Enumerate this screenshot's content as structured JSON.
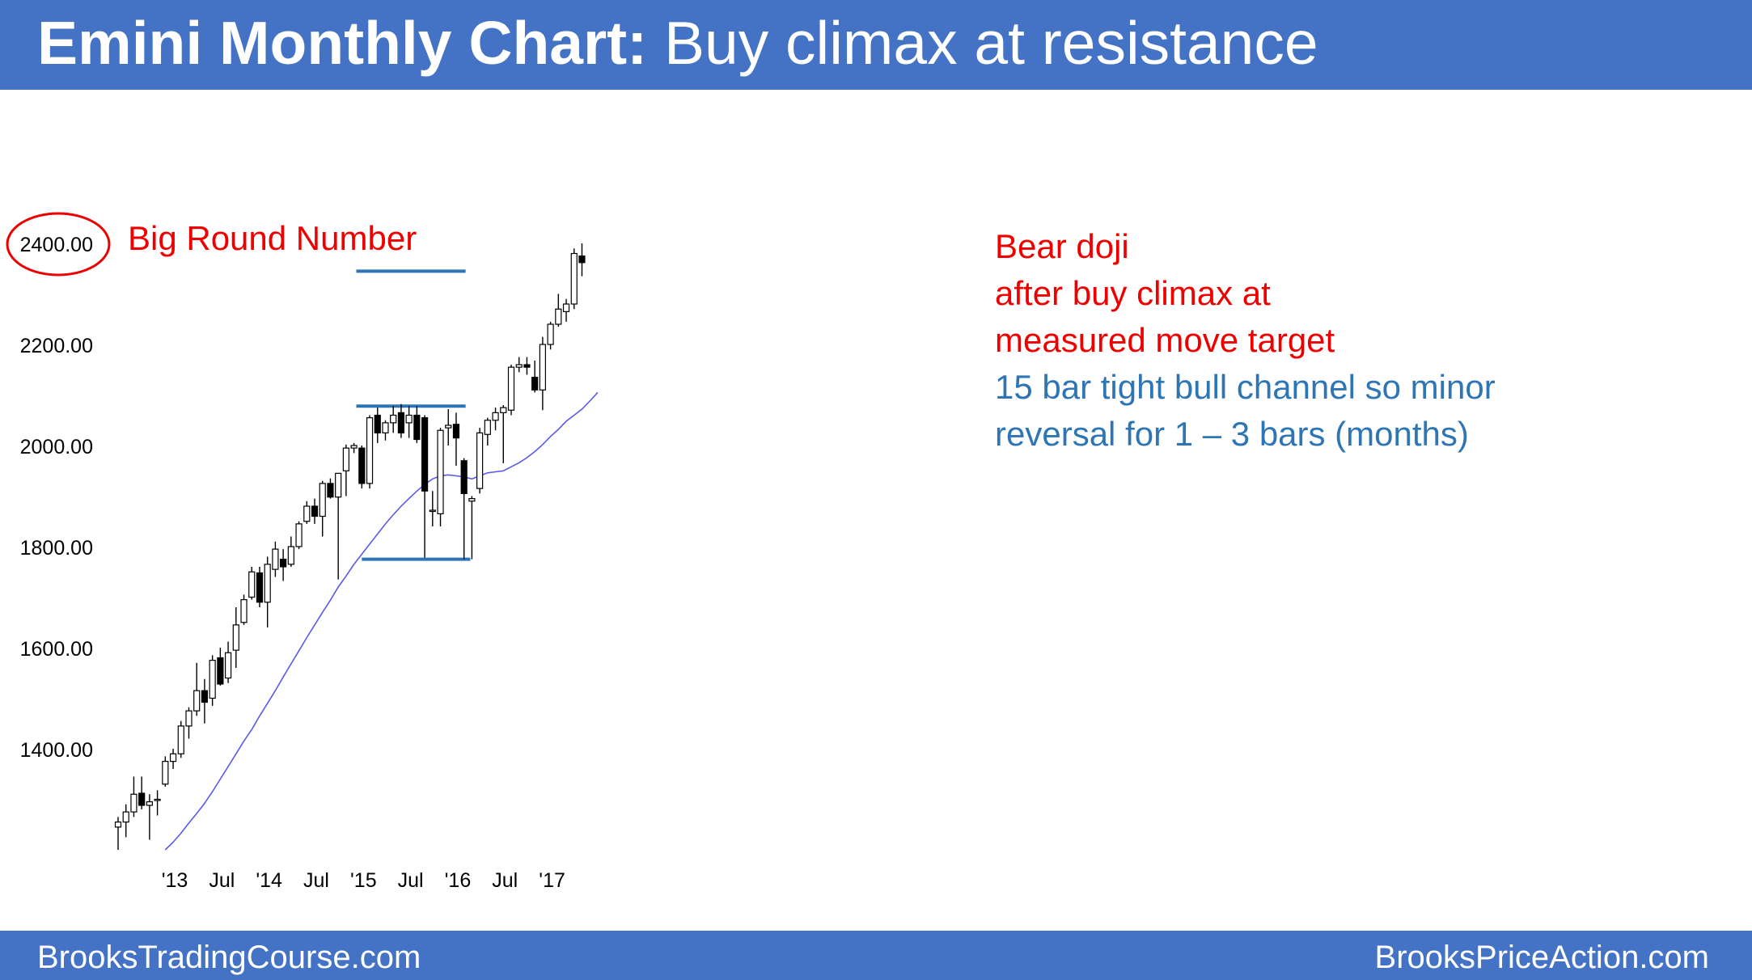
{
  "header": {
    "title_bold": "Emini Monthly Chart:",
    "title_rest": " Buy climax at resistance"
  },
  "footer": {
    "left": "BrooksTradingCourse.com",
    "right": "BrooksPriceAction.com"
  },
  "annotations": {
    "big_round_number": "Big Round Number",
    "red_lines": [
      "Bear doji",
      "after buy climax at",
      "measured move target"
    ],
    "blue_lines": [
      "15 bar tight bull channel so minor",
      "reversal for 1 – 3 bars (months)"
    ]
  },
  "colors": {
    "brand": "#4472C4",
    "red": "#EE0000",
    "blue_line": "#2E75B6",
    "ema": "#5A5AE6",
    "bear_candle": "#000000",
    "bull_candle": "#ffffff"
  },
  "chart_data": {
    "type": "candlestick",
    "title": "",
    "ylim": [
      1180,
      2460
    ],
    "ylabel": "",
    "xlabel": "",
    "y_ticks": [
      {
        "value": 1400,
        "label": "1400.00"
      },
      {
        "value": 1600,
        "label": "1600.00"
      },
      {
        "value": 1800,
        "label": "1800.00"
      },
      {
        "value": 2000,
        "label": "2000.00"
      },
      {
        "value": 2200,
        "label": "2200.00"
      },
      {
        "value": 2400,
        "label": "2400.00",
        "circled": true
      }
    ],
    "x_ticks": [
      {
        "index": 7,
        "label": "'13"
      },
      {
        "index": 13,
        "label": "Jul"
      },
      {
        "index": 19,
        "label": "'14"
      },
      {
        "index": 25,
        "label": "Jul"
      },
      {
        "index": 31,
        "label": "'15"
      },
      {
        "index": 37,
        "label": "Jul"
      },
      {
        "index": 43,
        "label": "'16"
      },
      {
        "index": 49,
        "label": "Jul"
      },
      {
        "index": 55,
        "label": "'17"
      }
    ],
    "candles": [
      {
        "o": 1245,
        "h": 1265,
        "l": 1200,
        "c": 1255
      },
      {
        "o": 1255,
        "h": 1290,
        "l": 1225,
        "c": 1275
      },
      {
        "o": 1275,
        "h": 1345,
        "l": 1265,
        "c": 1310
      },
      {
        "o": 1312,
        "h": 1345,
        "l": 1280,
        "c": 1288
      },
      {
        "o": 1288,
        "h": 1310,
        "l": 1220,
        "c": 1295
      },
      {
        "o": 1298,
        "h": 1318,
        "l": 1268,
        "c": 1300
      },
      {
        "o": 1330,
        "h": 1385,
        "l": 1325,
        "c": 1375
      },
      {
        "o": 1375,
        "h": 1400,
        "l": 1360,
        "c": 1390
      },
      {
        "o": 1390,
        "h": 1455,
        "l": 1382,
        "c": 1445
      },
      {
        "o": 1445,
        "h": 1482,
        "l": 1420,
        "c": 1475
      },
      {
        "o": 1475,
        "h": 1570,
        "l": 1465,
        "c": 1515
      },
      {
        "o": 1515,
        "h": 1538,
        "l": 1450,
        "c": 1492
      },
      {
        "o": 1500,
        "h": 1585,
        "l": 1485,
        "c": 1575
      },
      {
        "o": 1580,
        "h": 1600,
        "l": 1525,
        "c": 1528
      },
      {
        "o": 1540,
        "h": 1612,
        "l": 1530,
        "c": 1590
      },
      {
        "o": 1595,
        "h": 1680,
        "l": 1560,
        "c": 1645
      },
      {
        "o": 1650,
        "h": 1705,
        "l": 1645,
        "c": 1695
      },
      {
        "o": 1700,
        "h": 1760,
        "l": 1695,
        "c": 1750
      },
      {
        "o": 1748,
        "h": 1760,
        "l": 1680,
        "c": 1690
      },
      {
        "o": 1690,
        "h": 1780,
        "l": 1640,
        "c": 1765
      },
      {
        "o": 1755,
        "h": 1810,
        "l": 1740,
        "c": 1795
      },
      {
        "o": 1775,
        "h": 1795,
        "l": 1732,
        "c": 1760
      },
      {
        "o": 1765,
        "h": 1820,
        "l": 1760,
        "c": 1800
      },
      {
        "o": 1800,
        "h": 1850,
        "l": 1795,
        "c": 1845
      },
      {
        "o": 1850,
        "h": 1890,
        "l": 1845,
        "c": 1880
      },
      {
        "o": 1880,
        "h": 1895,
        "l": 1845,
        "c": 1860
      },
      {
        "o": 1860,
        "h": 1930,
        "l": 1820,
        "c": 1925
      },
      {
        "o": 1925,
        "h": 1935,
        "l": 1895,
        "c": 1898
      },
      {
        "o": 1898,
        "h": 1945,
        "l": 1735,
        "c": 1945
      },
      {
        "o": 1950,
        "h": 2002,
        "l": 1900,
        "c": 1995
      },
      {
        "o": 1995,
        "h": 2005,
        "l": 1985,
        "c": 2000
      },
      {
        "o": 1995,
        "h": 2000,
        "l": 1915,
        "c": 1925
      },
      {
        "o": 1925,
        "h": 2060,
        "l": 1915,
        "c": 2055
      },
      {
        "o": 2060,
        "h": 2075,
        "l": 2005,
        "c": 2025
      },
      {
        "o": 2025,
        "h": 2050,
        "l": 2010,
        "c": 2045
      },
      {
        "o": 2045,
        "h": 2078,
        "l": 2025,
        "c": 2060
      },
      {
        "o": 2065,
        "h": 2082,
        "l": 2015,
        "c": 2025
      },
      {
        "o": 2045,
        "h": 2078,
        "l": 2015,
        "c": 2060
      },
      {
        "o": 2060,
        "h": 2078,
        "l": 2005,
        "c": 2012
      },
      {
        "o": 2055,
        "h": 2060,
        "l": 1778,
        "c": 1910
      },
      {
        "o": 1870,
        "h": 1910,
        "l": 1840,
        "c": 1872
      },
      {
        "o": 1865,
        "h": 2035,
        "l": 1840,
        "c": 2030
      },
      {
        "o": 2035,
        "h": 2072,
        "l": 2000,
        "c": 2040
      },
      {
        "o": 2042,
        "h": 2065,
        "l": 1960,
        "c": 2015
      },
      {
        "o": 1970,
        "h": 1975,
        "l": 1775,
        "c": 1905
      },
      {
        "o": 1890,
        "h": 1900,
        "l": 1775,
        "c": 1895
      },
      {
        "o": 1915,
        "h": 2035,
        "l": 1905,
        "c": 2025
      },
      {
        "o": 2022,
        "h": 2055,
        "l": 2000,
        "c": 2050
      },
      {
        "o": 2050,
        "h": 2075,
        "l": 2030,
        "c": 2065
      },
      {
        "o": 2065,
        "h": 2080,
        "l": 1965,
        "c": 2075
      },
      {
        "o": 2070,
        "h": 2160,
        "l": 2060,
        "c": 2155
      },
      {
        "o": 2155,
        "h": 2175,
        "l": 2145,
        "c": 2160
      },
      {
        "o": 2160,
        "h": 2175,
        "l": 2140,
        "c": 2155
      },
      {
        "o": 2135,
        "h": 2168,
        "l": 2105,
        "c": 2110
      },
      {
        "o": 2110,
        "h": 2215,
        "l": 2070,
        "c": 2200
      },
      {
        "o": 2200,
        "h": 2245,
        "l": 2190,
        "c": 2240
      },
      {
        "o": 2240,
        "h": 2300,
        "l": 2235,
        "c": 2270
      },
      {
        "o": 2265,
        "h": 2290,
        "l": 2245,
        "c": 2280
      },
      {
        "o": 2280,
        "h": 2390,
        "l": 2270,
        "c": 2380
      },
      {
        "o": 2375,
        "h": 2400,
        "l": 2335,
        "c": 2362
      }
    ],
    "moving_average": [
      1200,
      1215,
      1233,
      1253,
      1272,
      1292,
      1315,
      1340,
      1365,
      1390,
      1415,
      1438,
      1465,
      1490,
      1515,
      1542,
      1568,
      1594,
      1620,
      1645,
      1670,
      1694,
      1720,
      1742,
      1765,
      1785,
      1805,
      1825,
      1845,
      1863,
      1880,
      1895,
      1910,
      1923,
      1934,
      1940,
      1942,
      1940,
      1938,
      1934,
      1940,
      1946,
      1948,
      1950,
      1958,
      1966,
      1976,
      1988,
      2002,
      2018,
      2032,
      2048,
      2060,
      2072,
      2088,
      2105
    ],
    "horizontal_levels": [
      {
        "value": 2345,
        "x_from": 30.3,
        "x_to": 44.2
      },
      {
        "value": 2078,
        "x_from": 30.3,
        "x_to": 44.2
      },
      {
        "value": 1775,
        "x_from": 31.0,
        "x_to": 44.8
      }
    ]
  }
}
